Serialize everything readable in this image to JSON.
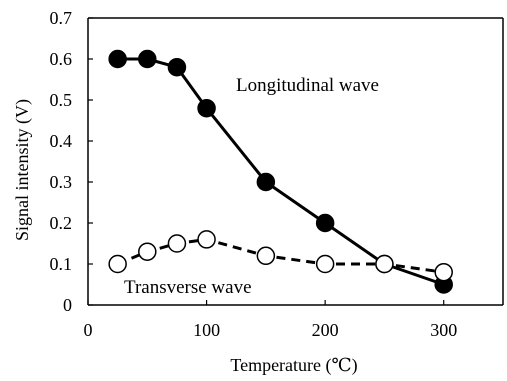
{
  "chart_data": {
    "type": "line",
    "title": "",
    "xlabel": "Temperature (℃)",
    "ylabel": "Signal intensity (V)",
    "xlim": [
      0,
      350
    ],
    "ylim": [
      0,
      0.7
    ],
    "x_ticks": [
      0,
      100,
      200,
      300
    ],
    "x_tick_labels": [
      "0",
      "100",
      "200",
      "300"
    ],
    "y_ticks": [
      0,
      0.1,
      0.2,
      0.3,
      0.4,
      0.5,
      0.6,
      0.7
    ],
    "y_tick_labels": [
      "0",
      "0.1",
      "0.2",
      "0.3",
      "0.4",
      "0.5",
      "0.6",
      "0.7"
    ],
    "grid": false,
    "legend": "none",
    "series": [
      {
        "name": "Longitudinal wave",
        "style": "solid",
        "marker": "filled-circle",
        "color": "#000000",
        "points": [
          {
            "x": 25,
            "y": 0.6
          },
          {
            "x": 50,
            "y": 0.6
          },
          {
            "x": 75,
            "y": 0.58
          },
          {
            "x": 100,
            "y": 0.48
          },
          {
            "x": 150,
            "y": 0.3
          },
          {
            "x": 200,
            "y": 0.2
          },
          {
            "x": 250,
            "y": 0.1
          },
          {
            "x": 300,
            "y": 0.05
          }
        ]
      },
      {
        "name": "Transverse wave",
        "style": "dashed",
        "marker": "open-circle",
        "color": "#000000",
        "points": [
          {
            "x": 25,
            "y": 0.1
          },
          {
            "x": 50,
            "y": 0.13
          },
          {
            "x": 75,
            "y": 0.15
          },
          {
            "x": 100,
            "y": 0.16
          },
          {
            "x": 150,
            "y": 0.12
          },
          {
            "x": 200,
            "y": 0.1
          },
          {
            "x": 250,
            "y": 0.1
          },
          {
            "x": 300,
            "y": 0.08
          }
        ]
      }
    ]
  }
}
